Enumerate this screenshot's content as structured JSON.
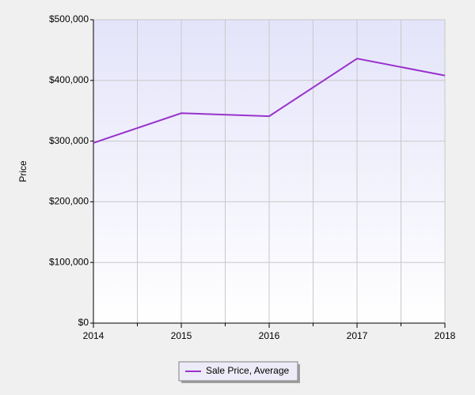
{
  "chart_data": {
    "type": "line",
    "y_label": "Price",
    "x": [
      2014,
      2015,
      2016,
      2017,
      2018
    ],
    "series": [
      {
        "name": "Sale Price, Average",
        "color": "#9932cc",
        "values": [
          297000,
          346000,
          341000,
          436000,
          408000
        ]
      }
    ],
    "xlim": [
      2014,
      2018
    ],
    "xticks": [
      2014,
      2015,
      2016,
      2017,
      2018
    ],
    "x_minor_ticks": [
      2014.5,
      2015.5,
      2016.5,
      2017.5
    ],
    "ylim": [
      0,
      500000
    ],
    "yticks": [
      {
        "value": 0,
        "label": "$0"
      },
      {
        "value": 100000,
        "label": "$100,000"
      },
      {
        "value": 200000,
        "label": "$200,000"
      },
      {
        "value": 300000,
        "label": "$300,000"
      },
      {
        "value": 400000,
        "label": "$400,000"
      },
      {
        "value": 500000,
        "label": "$500,000"
      }
    ],
    "grid": true,
    "legend": "bottom"
  }
}
